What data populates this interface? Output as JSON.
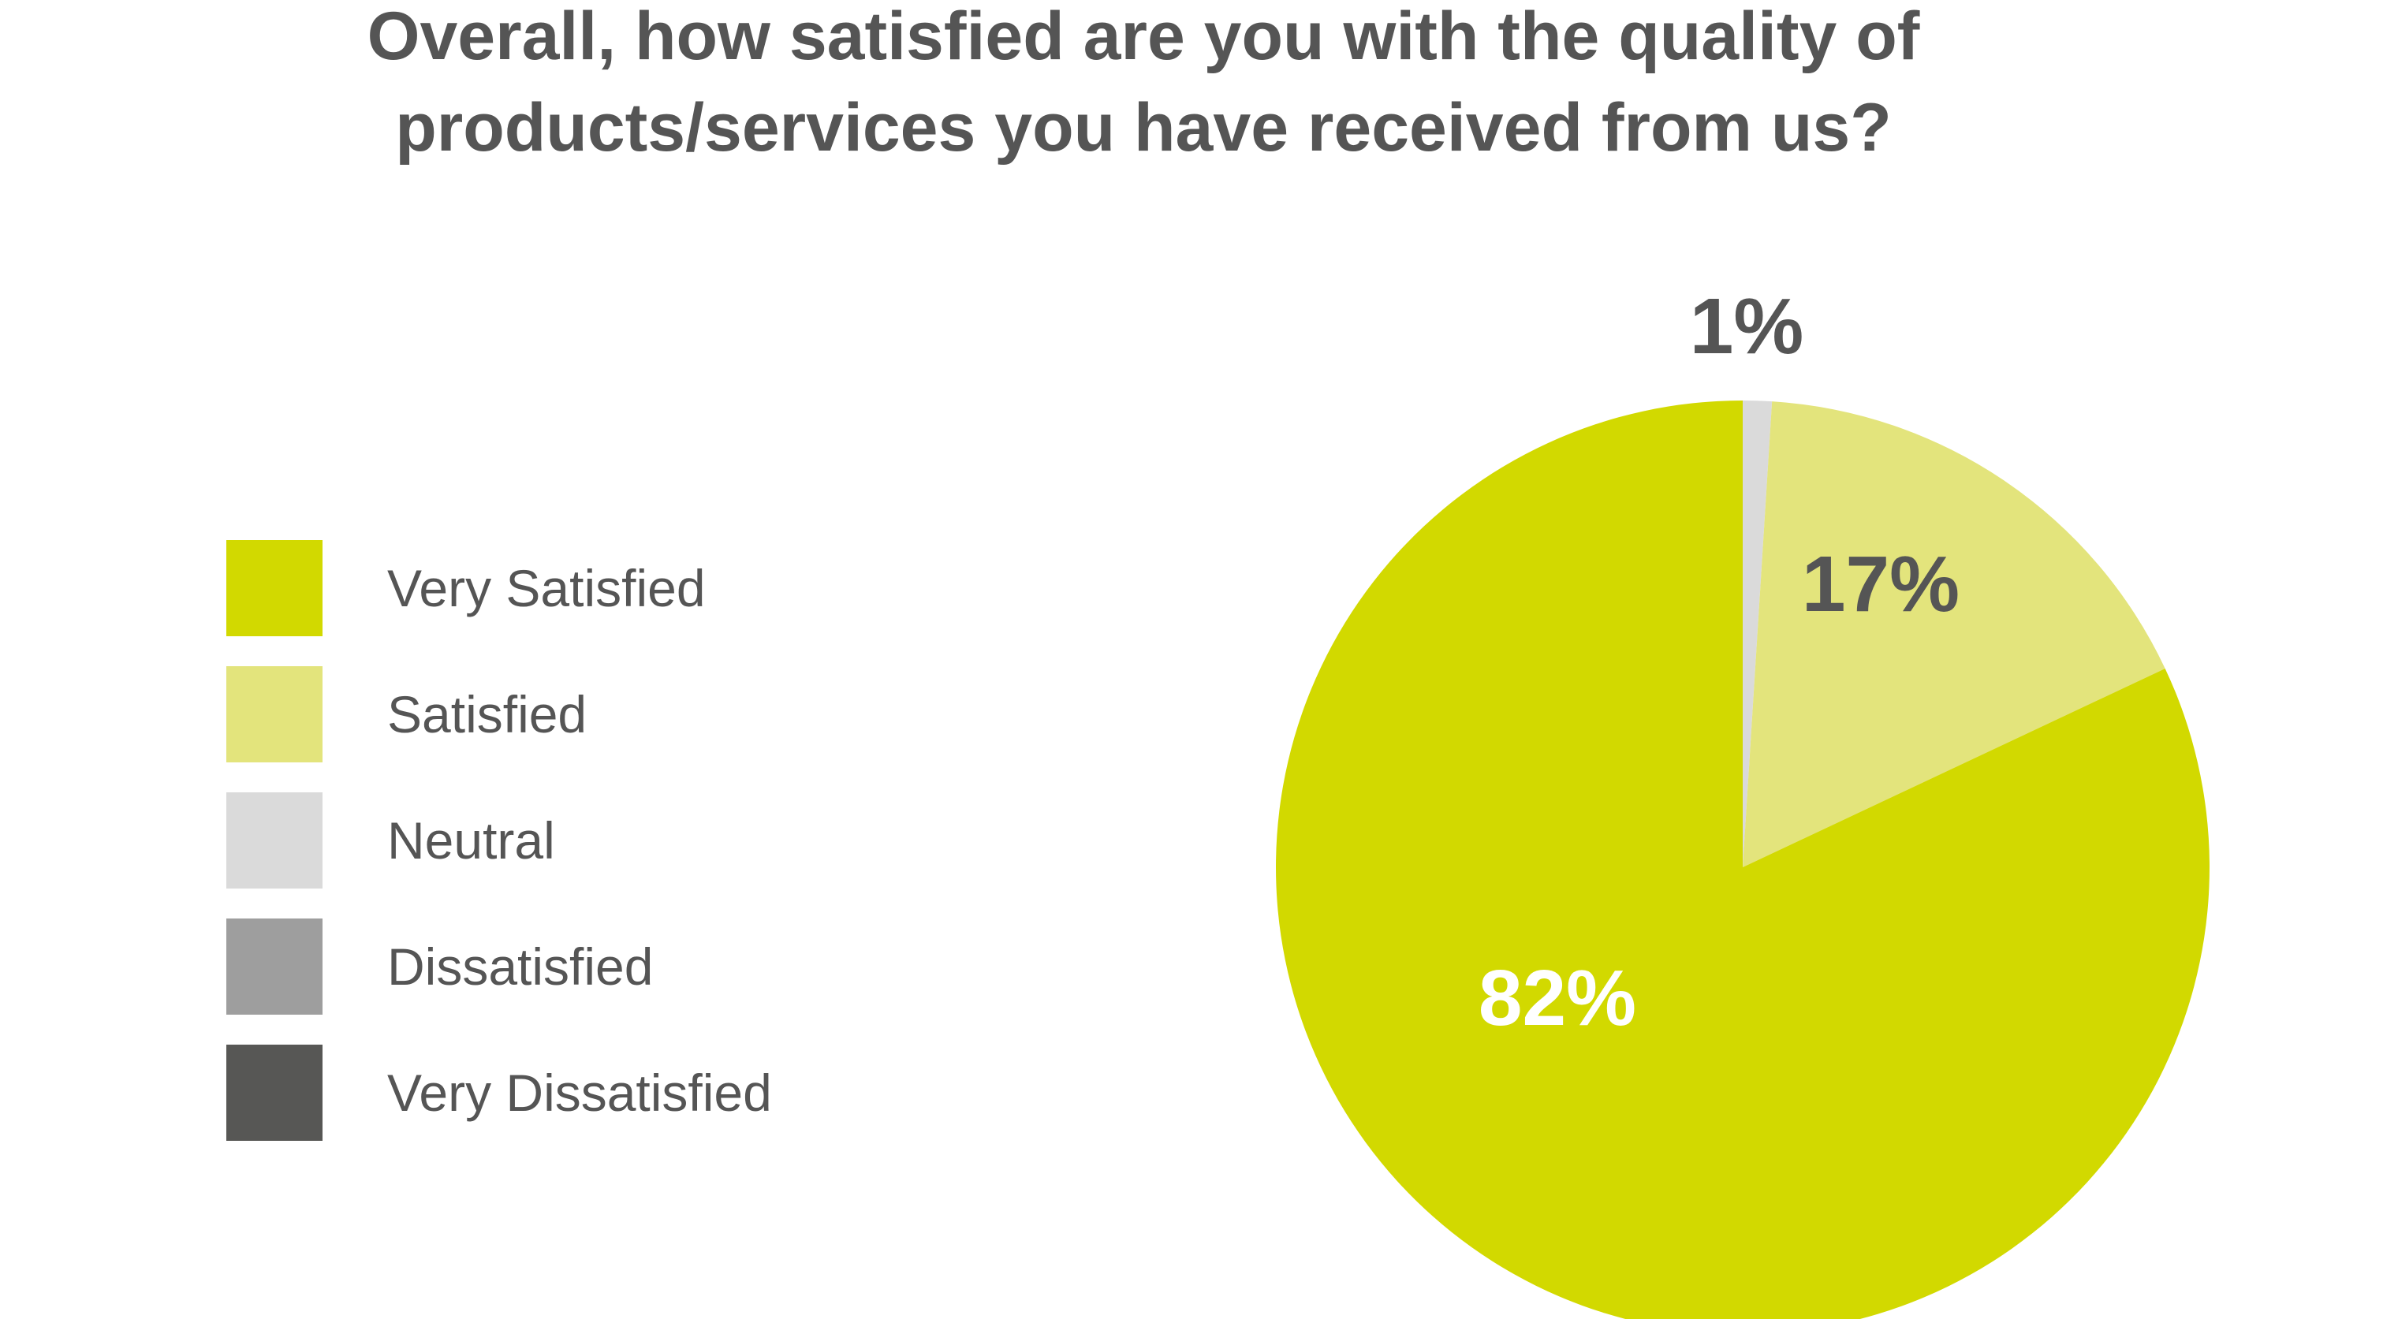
{
  "chart_data": {
    "type": "pie",
    "title": "Overall, how satisfied are you with the quality of products/services you have received from us?",
    "title_lines": [
      "Overall, how satisfied are you with the quality of",
      "products/services you have received from us?"
    ],
    "categories": [
      "Very Satisfied",
      "Satisfied",
      "Neutral",
      "Dissatisfied",
      "Very Dissatisfied"
    ],
    "values": [
      82,
      17,
      1,
      0,
      0
    ],
    "data_labels": [
      "82%",
      "17%",
      "1%",
      "",
      ""
    ],
    "colors": [
      "#d2d900",
      "#e3e47c",
      "#dadada",
      "#9e9e9e",
      "#575755"
    ],
    "label_colors": [
      "#ffffff",
      "#555555",
      "#555555",
      "#555555",
      "#555555"
    ],
    "start_angle_deg": 0,
    "direction": "clockwise",
    "legend_position": "left"
  }
}
